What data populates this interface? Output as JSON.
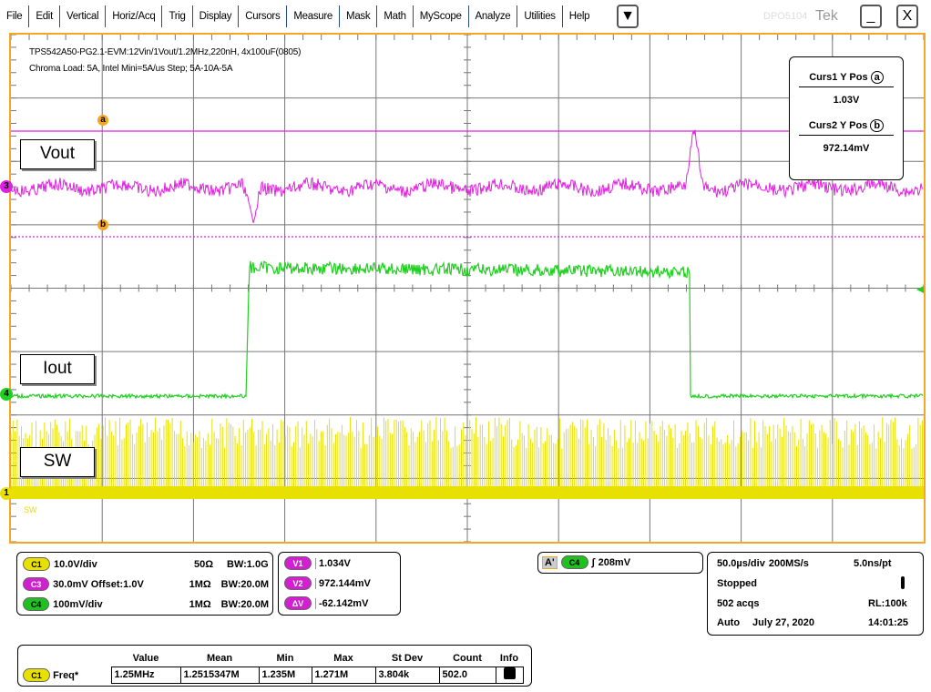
{
  "menu": [
    "File",
    "Edit",
    "Vertical",
    "Horiz/Acq",
    "Trig",
    "Display",
    "Cursors",
    "Measure",
    "Mask",
    "Math",
    "MyScope",
    "Analyze",
    "Utilities",
    "Help"
  ],
  "window": {
    "dropdown": "▼",
    "model": "DPO5104",
    "brand": "Tek",
    "minimize": "_",
    "close": "X"
  },
  "screen": {
    "title1": "TPS542A50-PG2.1-EVM:12Vin/1Vout/1.2MHz,220nH, 4x100uF(0805)",
    "title2": "Chroma Load: 5A, Intel Mini=5A/us Step; 5A-10A-5A",
    "labels": {
      "vout": "Vout",
      "iout": "Iout",
      "sw": "SW",
      "sw_small": "SW"
    },
    "markers": {
      "ch3": "3",
      "ch4": "4",
      "ch1": "1",
      "cursor_a": "a",
      "cursor_b": "b"
    },
    "colors": {
      "ch1": "#e8e000",
      "ch3": "#e020e0",
      "ch4": "#20d020",
      "frame": "#f5a623"
    }
  },
  "cursors": {
    "c1_label": "Curs1 Y Pos",
    "c1_icon": "a",
    "c1_value": "1.03V",
    "c2_label": "Curs2 Y Pos",
    "c2_icon": "b",
    "c2_value": "972.14mV"
  },
  "channels": [
    {
      "id": "C1",
      "scale": "10.0V/div",
      "imp": "50Ω",
      "bw": "BW:1.0G"
    },
    {
      "id": "C3",
      "scale": "30.0mV  Offset:1.0V",
      "imp": "1MΩ",
      "bw": "BW:20.0M"
    },
    {
      "id": "C4",
      "scale": "100mV/div",
      "imp": "1MΩ",
      "bw": "BW:20.0M"
    }
  ],
  "cursor_readout": [
    {
      "id": "V1",
      "value": "1.034V"
    },
    {
      "id": "V2",
      "value": "972.144mV"
    },
    {
      "id": "ΔV",
      "value": "-62.142mV"
    }
  ],
  "trigger": {
    "mode": "A'",
    "source": "C4",
    "slope": "∫",
    "level": "208mV"
  },
  "acq": {
    "timebase": "50.0µs/div",
    "rate": "200MS/s",
    "res": "5.0ns/pt",
    "state": "Stopped",
    "acqs": "502 acqs",
    "rl": "RL:100k",
    "mode": "Auto",
    "date": "July 27, 2020",
    "time": "14:01:25"
  },
  "measure": {
    "headers": [
      "",
      "Value",
      "Mean",
      "Min",
      "Max",
      "St Dev",
      "Count",
      "Info"
    ],
    "source": "C1",
    "name": "Freq*",
    "values": [
      "1.25MHz",
      "1.2515347M",
      "1.235M",
      "1.271M",
      "3.804k",
      "502.0"
    ]
  }
}
